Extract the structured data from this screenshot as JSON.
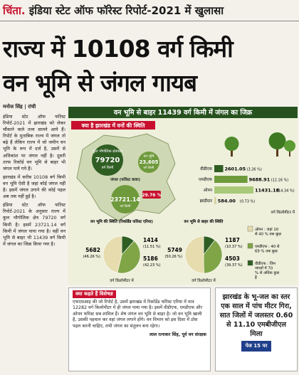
{
  "header": {
    "kicker": "चिंता.",
    "tagline": "इंडिया स्टेट ऑफ फॉरेस्ट रिपोर्ट-2021 में खुलासा"
  },
  "headline": [
    "राज्य में 10108 वर्ग किमी",
    "वन भूमि से जंगल गायब"
  ],
  "byline": {
    "author": "मनोज सिंह",
    "place": "रांची"
  },
  "body": [
    "इंडिया स्टेट ऑफ फॉरेस्ट रिपोर्ट-2021 में झारखंड को लेकर चौंकाने वाले तथ्य सामने आये हैं। रिपोर्ट के मुताबिक राज्य में जंगल तो बढ़े हैं लेकिन राज्य में जो जमीन वन भूमि के रूप में दर्ज है, उसमें से अधिकांश पर जंगल नहीं है। दूसरी तरफ रिकॉर्ड वन भूमि से बाहर भी जंगल पाये गये हैं।",
    "झारखंड में करीब 10108 वर्ग किमी वन भूमि ऐसी है जहां कोई जंगल नहीं है। इसमें जंगल उगाने की कोई पहल अब तक नहीं हुई है।",
    "इंडिया स्टेट ऑफ फॉरेस्ट रिपोर्ट-2021 के अनुसार राज्य में कुल भौगोलिक क्षेत्र 79720 वर्ग किमी है। इसमें 23721.14 वर्ग किमी में जंगल पाया गया है। वहीं वन भूमि से बाहर भी 11439 वर्ग किमी में जंगल का जिक्र किया गया है।"
  ],
  "infographic": {
    "title": "वन भूमि से बाहर 11439 वर्ग किमी में जंगल का जिक्र",
    "subtitle": "क्या है झारखंड में वनों की स्थिति",
    "map": {
      "total": {
        "label": "कुल भौगोलिक क्षेत्रफल",
        "value": "79720",
        "unit": "वर्ग किमी"
      },
      "forest_land": {
        "label": "वन भूमि",
        "value": "23,605",
        "unit": "वर्ग किमी"
      },
      "forest_cover": {
        "label": "जंगल (फॉरेस्ट कवर)",
        "value": "23721.14",
        "unit": "वर्ग किमी",
        "percent": "29.76 %"
      }
    },
    "bar_chart": {
      "categories": [
        "वीडीएफ",
        "एमडीएफ",
        "ओपन",
        "झाड़ीदार"
      ],
      "values": [
        2601.05,
        9688.91,
        11431.18,
        584.0
      ],
      "value_labels": [
        "2601.05",
        "9688.91",
        "11431.18",
        "584.00"
      ],
      "percent_labels": [
        "(3.26 %)",
        "(12.16 %)",
        "(14.34 %)",
        "(0.73 %)"
      ],
      "colors": [
        "#2f5e23",
        "#6f9a3c",
        "#a9c878",
        "#d8d2a0"
      ],
      "unit": "वर्ग किलोमीटर में"
    },
    "pies": [
      {
        "title": "वन भूमि की स्थिति (रिकॉर्डेड फॉरेस्ट एरिया)",
        "values": [
          1414,
          5186,
          5682
        ],
        "percent_labels": [
          "(11.51 %)",
          "(42.23 %)",
          "(46.26 %)"
        ],
        "unit": "वर्ग किलोमीटर में"
      },
      {
        "title": "वन भूमि से बाहर की स्थिति",
        "values": [
          1187,
          4503,
          5749
        ],
        "percent_labels": [
          "(10.37 %)",
          "(39.37 %)",
          "(50.26 %)"
        ],
        "unit": "वर्ग किलोमीटर में"
      }
    ],
    "pie_colors": [
      "#2f5e23",
      "#7fa547",
      "#e6dcae"
    ],
    "legend": [
      {
        "label": "ओपन : जहां 10 से 40 % तक कुछ",
        "color": "#e6dcae"
      },
      {
        "label": "एमडीएफ : 40 से 69 % तक कुछ",
        "color": "#7fa547"
      },
      {
        "label": "वीडीएफ : जिन जंगलों में 70 % से अधिक कुछ है",
        "color": "#2f5e23"
      }
    ]
  },
  "expert": {
    "heading": "क्या कहते हैं विशेषज्ञ",
    "quote": "एफएसआइ की जो रिपोर्ट है, उसमें झारखंड में रिकॉर्डेड फॉरेस्ट एरिया में मात्र 12282 वर्ग किलोमीटर में ही जंगल पाया गया है। इसमें वीडीएफ, एमडीएफ और ओपन फॉरेस्ट सब शामिल हैं। शेष जंगल वन भूमि से बाहर है। जो वन भूमि खाली है, उसकी पहचान कर वहां जंगल लगाने होंगे। वन विभाग को इस दिशा में ठोस पहल करनी चाहिए, तभी जंगल का संतुलन बना रहेगा।",
    "signature": "लाल रत्नाकर सिंह, पूर्व वन संरक्षक"
  },
  "sidebar": {
    "text": "झारखंड के भू-जल का स्तर एक साल में पांच मीटर गिरा, सात जिलों में जलस्तर 0.60 से 11.10 एमबीजीएल मिला",
    "page_ref": "पेज 15 पर"
  }
}
